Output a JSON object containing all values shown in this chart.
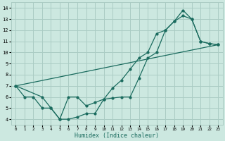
{
  "xlabel": "Humidex (Indice chaleur)",
  "xlim": [
    -0.5,
    23.5
  ],
  "ylim": [
    3.5,
    14.5
  ],
  "xticks": [
    0,
    1,
    2,
    3,
    4,
    5,
    6,
    7,
    8,
    9,
    10,
    11,
    12,
    13,
    14,
    15,
    16,
    17,
    18,
    19,
    20,
    21,
    22,
    23
  ],
  "yticks": [
    4,
    5,
    6,
    7,
    8,
    9,
    10,
    11,
    12,
    13,
    14
  ],
  "bg_color": "#cce8e0",
  "grid_color": "#aaccC4",
  "line_color": "#1a6b5e",
  "line1_x": [
    0,
    1,
    2,
    3,
    4,
    5,
    6,
    7,
    8,
    9,
    10,
    11,
    12,
    13,
    14,
    15,
    16,
    17,
    18,
    19,
    20,
    21,
    22,
    23
  ],
  "line1_y": [
    7,
    6,
    6,
    5,
    5,
    4,
    4,
    4.2,
    4.5,
    4.5,
    5.8,
    5.9,
    6.0,
    6.0,
    7.7,
    9.5,
    10.0,
    12.0,
    12.8,
    13.3,
    13.0,
    11.0,
    10.8,
    10.7
  ],
  "line2_x": [
    0,
    3,
    4,
    5,
    6,
    7,
    8,
    9,
    10,
    11,
    12,
    13,
    14,
    15,
    16,
    17,
    18,
    19,
    20,
    21,
    22,
    23
  ],
  "line2_y": [
    7,
    6.0,
    5.0,
    4.0,
    6.0,
    6.0,
    5.2,
    5.5,
    5.8,
    6.8,
    7.5,
    8.5,
    9.5,
    10.0,
    11.7,
    12.0,
    12.8,
    13.8,
    13.0,
    11.0,
    10.8,
    10.7
  ],
  "line3_x": [
    0,
    23
  ],
  "line3_y": [
    7,
    10.7
  ]
}
